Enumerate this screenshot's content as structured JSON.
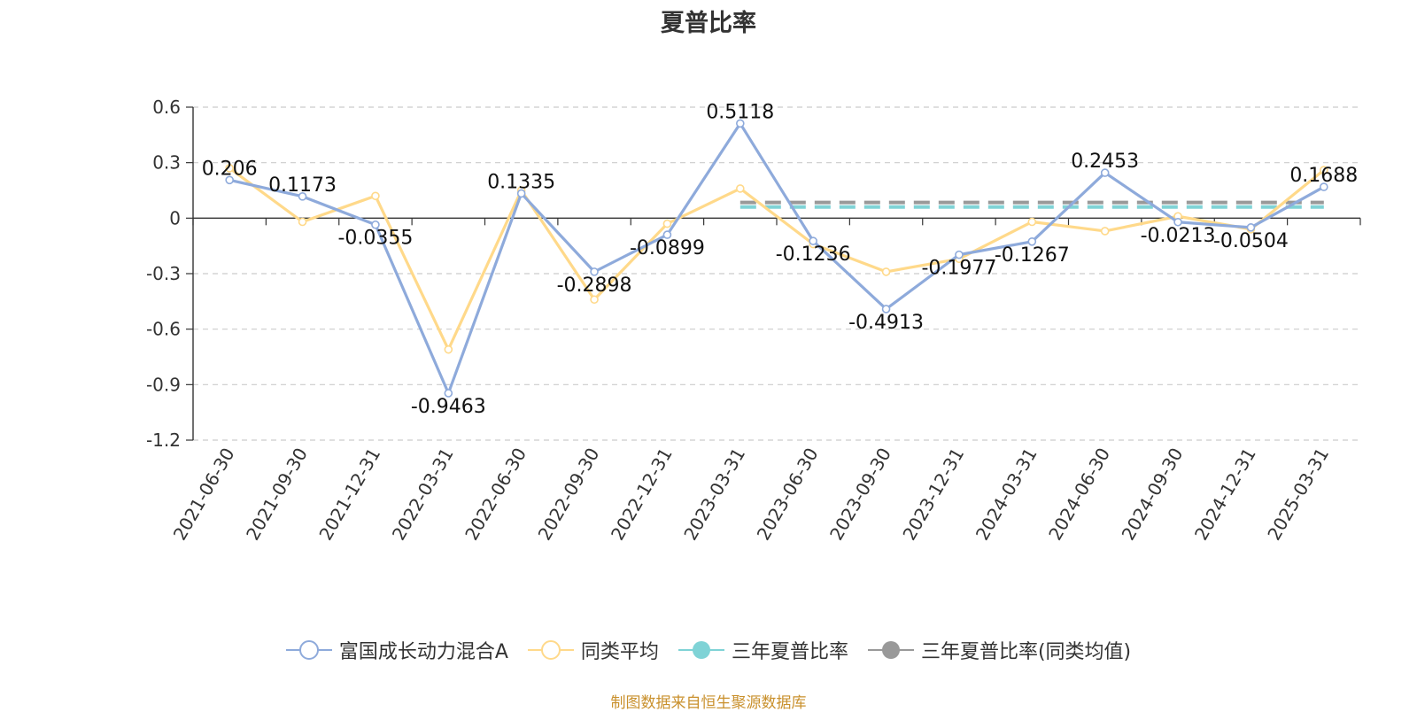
{
  "title": "夏普比率",
  "source": "制图数据来自恒生聚源数据库",
  "legend": [
    {
      "name": "富国成长动力混合A",
      "color": "#8eaadb",
      "symbol": "hollow-circle"
    },
    {
      "name": "同类平均",
      "color": "#ffd98a",
      "symbol": "hollow-circle"
    },
    {
      "name": "三年夏普比率",
      "color": "#7fd3d6",
      "symbol": "filled-circle"
    },
    {
      "name": "三年夏普比率(同类均值)",
      "color": "#999999",
      "symbol": "filled-circle"
    }
  ],
  "chart_data": {
    "type": "line",
    "title": "夏普比率",
    "categories": [
      "2021-06-30",
      "2021-09-30",
      "2021-12-31",
      "2022-03-31",
      "2022-06-30",
      "2022-09-30",
      "2022-12-31",
      "2023-03-31",
      "2023-06-30",
      "2023-09-30",
      "2023-12-31",
      "2024-03-31",
      "2024-06-30",
      "2024-09-30",
      "2024-12-31",
      "2025-03-31"
    ],
    "ylim": [
      -1.2,
      0.6
    ],
    "yticks": [
      0.6,
      0.3,
      0,
      -0.3,
      -0.6,
      -0.9,
      -1.2
    ],
    "ytick_labels": [
      "0.6",
      "0.3",
      "0",
      "-0.3",
      "-0.6",
      "-0.9",
      "-1.2"
    ],
    "grid": true,
    "series": [
      {
        "name": "富国成长动力混合A",
        "color": "#8eaadb",
        "values": [
          0.206,
          0.1173,
          -0.0355,
          -0.9463,
          0.1335,
          -0.2898,
          -0.0899,
          0.5118,
          -0.1236,
          -0.4913,
          -0.1977,
          -0.1267,
          0.2453,
          -0.0213,
          -0.0504,
          0.1688
        ],
        "labels": [
          "0.206",
          "0.1173",
          "-0.0355",
          "-0.9463",
          "0.1335",
          "-0.2898",
          "-0.0899",
          "0.5118",
          "-0.1236",
          "-0.4913",
          "-0.1977",
          "-0.1267",
          "0.2453",
          "-0.0213",
          "-0.0504",
          "0.1688"
        ]
      },
      {
        "name": "同类平均",
        "color": "#ffd98a",
        "values": [
          0.27,
          -0.02,
          0.12,
          -0.71,
          0.15,
          -0.44,
          -0.03,
          0.16,
          -0.14,
          -0.29,
          -0.22,
          -0.02,
          -0.07,
          0.01,
          -0.06,
          0.26
        ]
      }
    ],
    "reference_lines": [
      {
        "name": "三年夏普比率",
        "color": "#7fd3d6",
        "value": 0.06,
        "from": "2023-03-31",
        "to": "2025-03-31"
      },
      {
        "name": "三年夏普比率(同类均值)",
        "color": "#999999",
        "value": 0.085,
        "from": "2023-03-31",
        "to": "2025-03-31"
      }
    ]
  }
}
